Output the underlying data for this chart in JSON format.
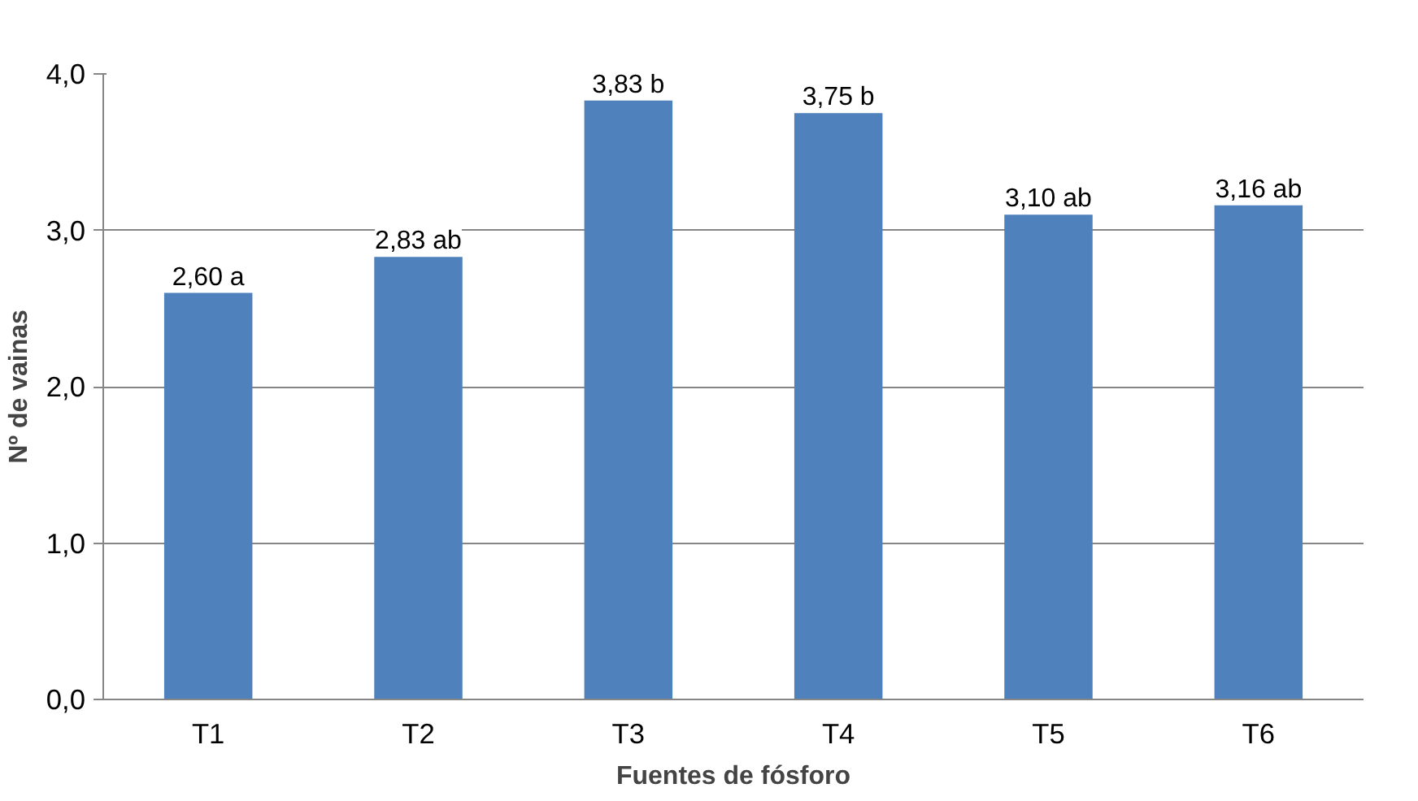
{
  "chart_data": {
    "type": "bar",
    "xlabel": "Fuentes de fósforo",
    "ylabel": "Nº de vainas",
    "categories": [
      "T1",
      "T2",
      "T3",
      "T4",
      "T5",
      "T6"
    ],
    "values": [
      2.6,
      2.83,
      3.83,
      3.75,
      3.1,
      3.16
    ],
    "value_labels": [
      "2,60 a",
      "2,83 ab",
      "3,83 b",
      "3,75 b",
      "3,10 ab",
      "3,16 ab"
    ],
    "color": "#4f81bd",
    "ylim": [
      0,
      4
    ],
    "yticks": [
      {
        "value": 0,
        "label": "0,0"
      },
      {
        "value": 1,
        "label": "1,0"
      },
      {
        "value": 2,
        "label": "2,0"
      },
      {
        "value": 3,
        "label": "3,0"
      },
      {
        "value": 4,
        "label": "4,0"
      }
    ],
    "grid": "y"
  }
}
